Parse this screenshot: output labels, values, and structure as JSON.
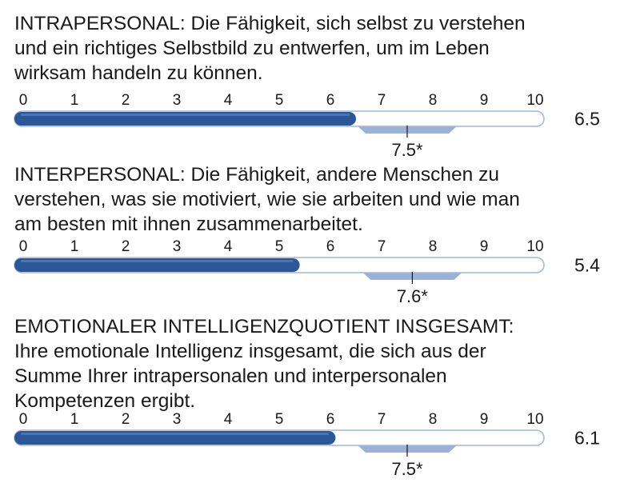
{
  "chart_data": [
    {
      "type": "bar",
      "title_lines": [
        "INTRAPERSONAL: Die Fähigkeit, sich selbst zu verstehen",
        "und ein richtiges Selbstbild zu entwerfen, um im Leben",
        "wirksam handeln zu können."
      ],
      "ticks": [
        "0",
        "1",
        "2",
        "3",
        "4",
        "5",
        "6",
        "7",
        "8",
        "9",
        "10"
      ],
      "xlim": [
        0,
        10
      ],
      "value": 6.5,
      "value_label": "6.5",
      "average": 7.5,
      "average_label": "7.5*",
      "average_range": [
        6.5,
        8.5
      ]
    },
    {
      "type": "bar",
      "title_lines": [
        "INTERPERSONAL: Die Fähigkeit, andere Menschen zu",
        "verstehen, was sie motiviert, wie sie arbeiten und wie man",
        "am besten mit ihnen zusammenarbeitet."
      ],
      "ticks": [
        "0",
        "1",
        "2",
        "3",
        "4",
        "5",
        "6",
        "7",
        "8",
        "9",
        "10"
      ],
      "xlim": [
        0,
        10
      ],
      "value": 5.4,
      "value_label": "5.4",
      "average": 7.6,
      "average_label": "7.6*",
      "average_range": [
        6.6,
        8.6
      ]
    },
    {
      "type": "bar",
      "title_lines": [
        "EMOTIONALER INTELLIGENZQUOTIENT INSGESAMT:",
        "Ihre emotionale Intelligenz insgesamt, die sich aus der",
        "Summe Ihrer intrapersonalen und interpersonalen",
        "Kompetenzen ergibt."
      ],
      "ticks": [
        "0",
        "1",
        "2",
        "3",
        "4",
        "5",
        "6",
        "7",
        "8",
        "9",
        "10"
      ],
      "xlim": [
        0,
        10
      ],
      "value": 6.1,
      "value_label": "6.1",
      "average": 7.5,
      "average_label": "7.5*",
      "average_range": [
        6.5,
        8.5
      ]
    }
  ],
  "colors": {
    "bar_fill": "#2b5697",
    "bar_highlight": "#5b82bf",
    "track_fill": "#ffffff",
    "track_border": "#a3b7d6",
    "average_band": "#9ab2d8"
  }
}
